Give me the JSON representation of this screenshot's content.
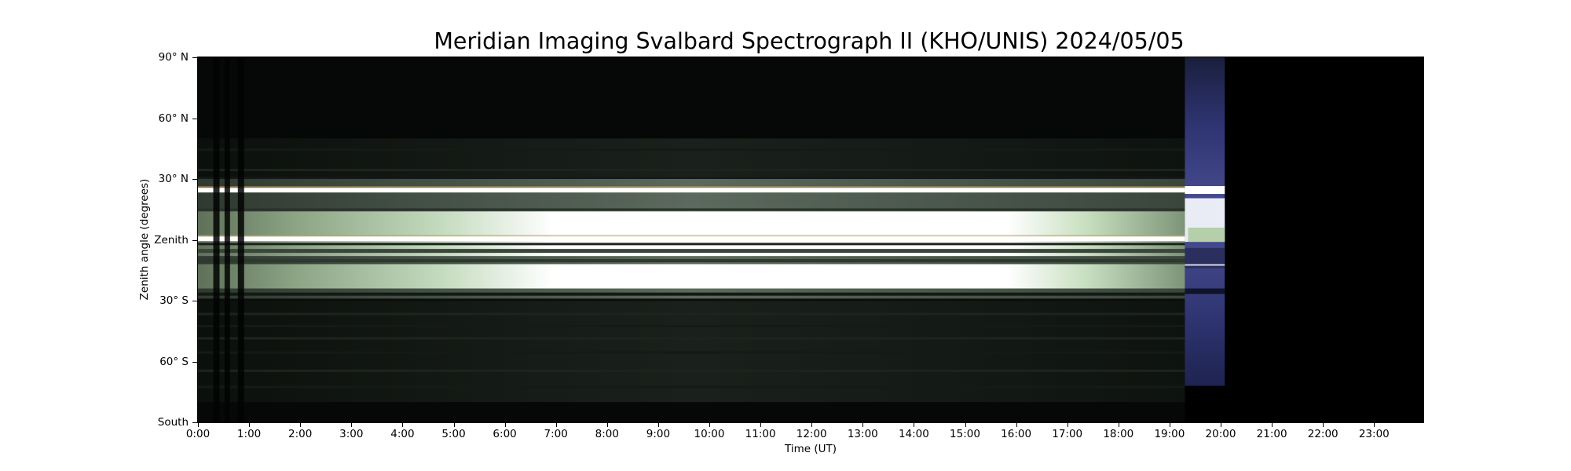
{
  "chart_data": {
    "type": "heatmap",
    "title": "Meridian Imaging Svalbard Spectrograph II (KHO/UNIS) 2024/05/05",
    "xlabel": "Time (UT)",
    "ylabel": "Zenith angle (degrees)",
    "x_range_hours": [
      0,
      24
    ],
    "y_range_degrees": [
      -90,
      90
    ],
    "x_ticks_hours": [
      0,
      1,
      2,
      3,
      4,
      5,
      6,
      7,
      8,
      9,
      10,
      11,
      12,
      13,
      14,
      15,
      16,
      17,
      18,
      19,
      20,
      21,
      22,
      23
    ],
    "x_tick_labels": [
      "0:00",
      "1:00",
      "2:00",
      "3:00",
      "4:00",
      "5:00",
      "6:00",
      "7:00",
      "8:00",
      "9:00",
      "10:00",
      "11:00",
      "12:00",
      "13:00",
      "14:00",
      "15:00",
      "16:00",
      "17:00",
      "18:00",
      "19:00",
      "20:00",
      "21:00",
      "22:00",
      "23:00"
    ],
    "y_ticks_degrees": [
      90,
      60,
      30,
      0,
      -30,
      -60,
      -90
    ],
    "y_tick_labels": [
      "90° N",
      "60° N",
      "30° N",
      "Zenith",
      "30° S",
      "60° S",
      "South"
    ],
    "grid": false,
    "legend": "none",
    "data_coverage": {
      "start_hour": 0,
      "main_end_hour": 19.3,
      "blue_segment_hours": [
        19.3,
        20.08
      ],
      "no_data_after_hour": 20.08
    },
    "bright_bands_degrees": [
      {
        "center": 24.5,
        "description": "thin bright line"
      },
      {
        "center": 0.5,
        "description": "thin bright line"
      },
      {
        "range": [
          -8,
          14
        ],
        "description": "saturated daylight band"
      },
      {
        "range": [
          -24,
          -12
        ],
        "description": "saturated daylight band"
      }
    ],
    "colors": {
      "background": "#050605",
      "daylight": "#ffffff",
      "greenish": "#cfe3c8",
      "blue_segment": "#3a3f8c"
    }
  }
}
